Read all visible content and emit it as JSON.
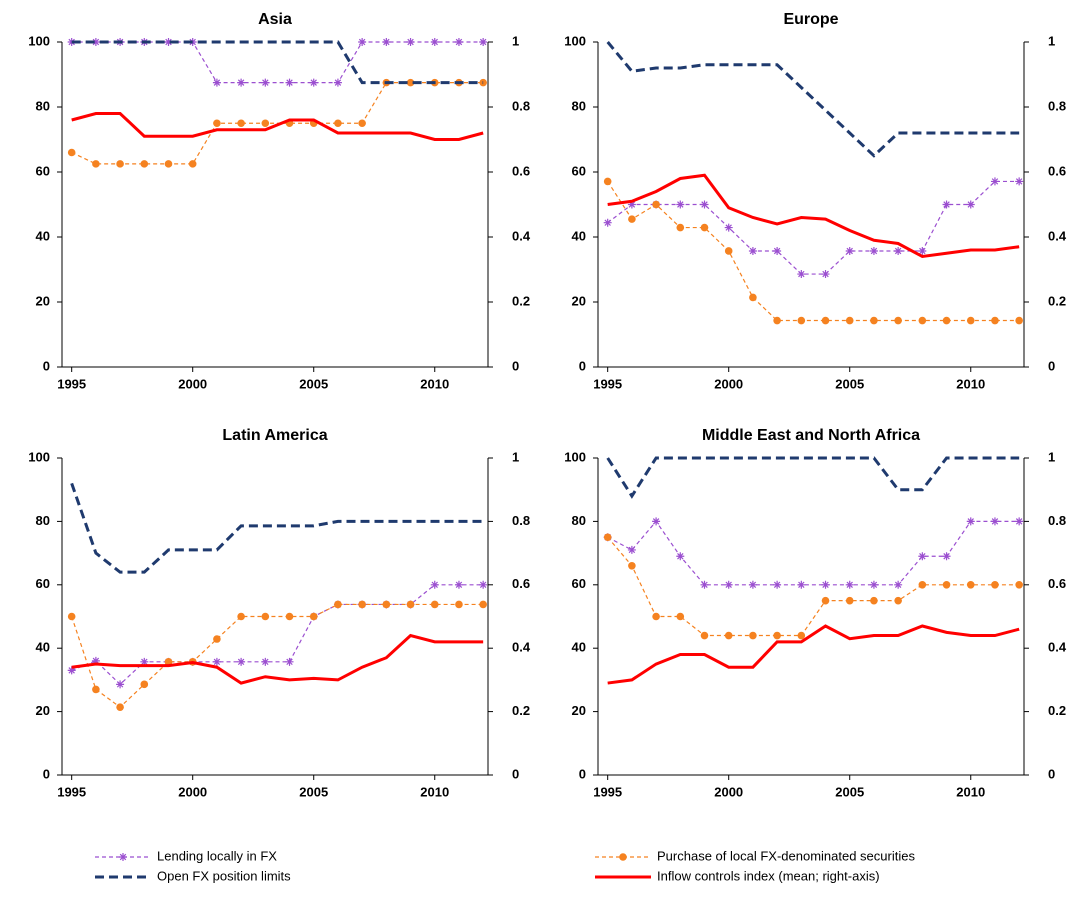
{
  "chart_data": [
    {
      "type": "line",
      "title": "Asia",
      "x": [
        1995,
        1996,
        1997,
        1998,
        1999,
        2000,
        2001,
        2002,
        2003,
        2004,
        2005,
        2006,
        2007,
        2008,
        2009,
        2010,
        2011,
        2012
      ],
      "xlim": [
        1994.6,
        2012.2
      ],
      "xticks": [
        1995,
        2000,
        2005,
        2010
      ],
      "ylim": [
        0,
        100
      ],
      "yticks": [
        0,
        20,
        40,
        60,
        80,
        100
      ],
      "y2lim": [
        0,
        1
      ],
      "y2ticks": [
        0,
        0.2,
        0.4,
        0.6,
        0.8,
        1
      ],
      "series": [
        {
          "name": "Lending locally in FX",
          "color": "#9b4fd0",
          "linestyle": "dashed",
          "marker": "star",
          "values": [
            100,
            100,
            100,
            100,
            100,
            100,
            87.5,
            87.5,
            87.5,
            87.5,
            87.5,
            87.5,
            100,
            100,
            100,
            100,
            100,
            100
          ]
        },
        {
          "name": "Purchase of local FX-denominated securities",
          "color": "#f58220",
          "linestyle": "dashed",
          "marker": "circle",
          "values": [
            66,
            62.5,
            62.5,
            62.5,
            62.5,
            62.5,
            75,
            75,
            75,
            75,
            75,
            75,
            75,
            87.5,
            87.5,
            87.5,
            87.5,
            87.5
          ]
        },
        {
          "name": "Open FX position limits",
          "color": "#1f3a6e",
          "linestyle": "longdash",
          "values": [
            100,
            100,
            100,
            100,
            100,
            100,
            100,
            100,
            100,
            100,
            100,
            100,
            87.5,
            87.5,
            87.5,
            87.5,
            87.5,
            87.5
          ]
        },
        {
          "name": "Inflow controls index (mean; right-axis)",
          "color": "#ff0000",
          "linestyle": "solid",
          "axis": "y2",
          "values": [
            0.76,
            0.78,
            0.78,
            0.71,
            0.71,
            0.71,
            0.73,
            0.73,
            0.73,
            0.76,
            0.76,
            0.72,
            0.72,
            0.72,
            0.72,
            0.7,
            0.7,
            0.72
          ]
        }
      ]
    },
    {
      "type": "line",
      "title": "Europe",
      "x": [
        1995,
        1996,
        1997,
        1998,
        1999,
        2000,
        2001,
        2002,
        2003,
        2004,
        2005,
        2006,
        2007,
        2008,
        2009,
        2010,
        2011,
        2012
      ],
      "xlim": [
        1994.6,
        2012.2
      ],
      "xticks": [
        1995,
        2000,
        2005,
        2010
      ],
      "ylim": [
        0,
        100
      ],
      "yticks": [
        0,
        20,
        40,
        60,
        80,
        100
      ],
      "y2lim": [
        0,
        1
      ],
      "y2ticks": [
        0,
        0.2,
        0.4,
        0.6,
        0.8,
        1
      ],
      "series": [
        {
          "color": "#9b4fd0",
          "linestyle": "dashed",
          "marker": "star",
          "values": [
            44.4,
            50,
            50,
            50,
            50,
            42.9,
            35.7,
            35.7,
            28.6,
            28.6,
            35.7,
            35.7,
            35.7,
            35.7,
            50,
            50,
            57.1,
            57.1
          ]
        },
        {
          "color": "#f58220",
          "linestyle": "dashed",
          "marker": "circle",
          "values": [
            57.1,
            45.5,
            50,
            42.9,
            42.9,
            35.7,
            21.4,
            14.3,
            14.3,
            14.3,
            14.3,
            14.3,
            14.3,
            14.3,
            14.3,
            14.3,
            14.3,
            14.3
          ]
        },
        {
          "color": "#1f3a6e",
          "linestyle": "longdash",
          "values": [
            100,
            91,
            92,
            92,
            93,
            93,
            93,
            93,
            86,
            79,
            72,
            65,
            72,
            72,
            72,
            72,
            72,
            72
          ]
        },
        {
          "color": "#ff0000",
          "linestyle": "solid",
          "axis": "y2",
          "values": [
            0.5,
            0.51,
            0.54,
            0.58,
            0.59,
            0.49,
            0.46,
            0.44,
            0.46,
            0.455,
            0.42,
            0.39,
            0.38,
            0.34,
            0.35,
            0.36,
            0.36,
            0.37
          ]
        }
      ]
    },
    {
      "type": "line",
      "title": "Latin America",
      "x": [
        1995,
        1996,
        1997,
        1998,
        1999,
        2000,
        2001,
        2002,
        2003,
        2004,
        2005,
        2006,
        2007,
        2008,
        2009,
        2010,
        2011,
        2012
      ],
      "xlim": [
        1994.6,
        2012.2
      ],
      "xticks": [
        1995,
        2000,
        2005,
        2010
      ],
      "ylim": [
        0,
        100
      ],
      "yticks": [
        0,
        20,
        40,
        60,
        80,
        100
      ],
      "y2lim": [
        0,
        1
      ],
      "y2ticks": [
        0,
        0.2,
        0.4,
        0.6,
        0.8,
        1
      ],
      "series": [
        {
          "color": "#9b4fd0",
          "linestyle": "dashed",
          "marker": "star",
          "values": [
            33,
            36,
            28.6,
            35.7,
            35.7,
            35.7,
            35.7,
            35.7,
            35.7,
            35.7,
            50,
            53.8,
            53.8,
            53.8,
            53.8,
            60,
            60,
            60
          ]
        },
        {
          "color": "#f58220",
          "linestyle": "dashed",
          "marker": "circle",
          "values": [
            50,
            27,
            21.4,
            28.6,
            35.7,
            35.7,
            42.9,
            50,
            50,
            50,
            50,
            53.8,
            53.8,
            53.8,
            53.8,
            53.8,
            53.8,
            53.8
          ]
        },
        {
          "color": "#1f3a6e",
          "linestyle": "longdash",
          "values": [
            92,
            70,
            64,
            64,
            71,
            71,
            71,
            78.6,
            78.6,
            78.6,
            78.6,
            80,
            80,
            80,
            80,
            80,
            80,
            80
          ]
        },
        {
          "color": "#ff0000",
          "linestyle": "solid",
          "axis": "y2",
          "values": [
            0.34,
            0.35,
            0.345,
            0.345,
            0.345,
            0.355,
            0.34,
            0.29,
            0.31,
            0.3,
            0.305,
            0.3,
            0.34,
            0.37,
            0.44,
            0.42,
            0.42,
            0.42
          ]
        }
      ]
    },
    {
      "type": "line",
      "title": "Middle East and North Africa",
      "x": [
        1995,
        1996,
        1997,
        1998,
        1999,
        2000,
        2001,
        2002,
        2003,
        2004,
        2005,
        2006,
        2007,
        2008,
        2009,
        2010,
        2011,
        2012
      ],
      "xlim": [
        1994.6,
        2012.2
      ],
      "xticks": [
        1995,
        2000,
        2005,
        2010
      ],
      "ylim": [
        0,
        100
      ],
      "yticks": [
        0,
        20,
        40,
        60,
        80,
        100
      ],
      "y2lim": [
        0,
        1
      ],
      "y2ticks": [
        0,
        0.2,
        0.4,
        0.6,
        0.8,
        1
      ],
      "series": [
        {
          "color": "#9b4fd0",
          "linestyle": "dashed",
          "marker": "star",
          "values": [
            75,
            71,
            80,
            69,
            60,
            60,
            60,
            60,
            60,
            60,
            60,
            60,
            60,
            69,
            69,
            80,
            80,
            80
          ]
        },
        {
          "color": "#f58220",
          "linestyle": "dashed",
          "marker": "circle",
          "values": [
            75,
            66,
            50,
            50,
            44,
            44,
            44,
            44,
            44,
            55,
            55,
            55,
            55,
            60,
            60,
            60,
            60,
            60
          ]
        },
        {
          "color": "#1f3a6e",
          "linestyle": "longdash",
          "values": [
            100,
            88,
            100,
            100,
            100,
            100,
            100,
            100,
            100,
            100,
            100,
            100,
            90,
            90,
            100,
            100,
            100,
            100
          ]
        },
        {
          "color": "#ff0000",
          "linestyle": "solid",
          "axis": "y2",
          "values": [
            0.29,
            0.3,
            0.35,
            0.38,
            0.38,
            0.34,
            0.34,
            0.42,
            0.42,
            0.47,
            0.43,
            0.44,
            0.44,
            0.47,
            0.45,
            0.44,
            0.44,
            0.46
          ]
        }
      ]
    }
  ]
}
